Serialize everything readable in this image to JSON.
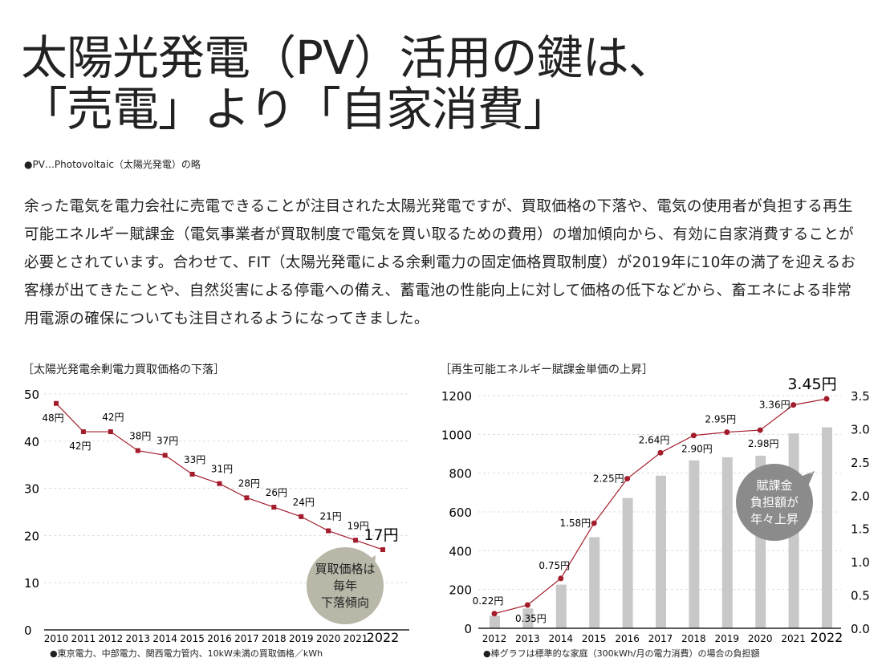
{
  "title_line1": "太陽光発電（PV）活用の鍵は、",
  "title_line2": "「売電」より「自家消費」",
  "note": "●PV…Photovoltaic（太陽光発電）の略",
  "body": "余った電気を電力会社に売電できることが注目された太陽光発電ですが、買取価格の下落や、電気の使用者が負担する再生可能エネルギー賦課金（電気事業者が買取制度で電気を買い取るための費用）の増加傾向から、有効に自家消費することが必要とされています。合わせて、FIT（太陽光発電による余剰電力の固定価格買取制度）が2019年に10年の満了を迎えるお客様が出てきたことや、自然災害による停電への備え、蓄電池の性能向上に対して価格の低下などから、畜エネによる非常用電源の確保についても注目されるようになってきました。",
  "chart_data": [
    {
      "type": "line",
      "title": "［太陽光発電余剰電力買取価格の下落］",
      "x": [
        "2010",
        "2011",
        "2012",
        "2013",
        "2014",
        "2015",
        "2016",
        "2017",
        "2018",
        "2019",
        "2020",
        "2021",
        "2022"
      ],
      "values": [
        48,
        42,
        42,
        38,
        37,
        33,
        31,
        28,
        26,
        24,
        21,
        19,
        17
      ],
      "labels": [
        "48円",
        "42円",
        "42円",
        "38円",
        "37円",
        "33円",
        "31円",
        "28円",
        "26円",
        "24円",
        "21円",
        "19円",
        "17円"
      ],
      "label_pos": [
        "below",
        "below",
        "above",
        "above",
        "above",
        "above",
        "above",
        "above",
        "above",
        "above",
        "above",
        "above",
        "big"
      ],
      "ylim": [
        0,
        50
      ],
      "yticks": [
        "0",
        "10",
        "20",
        "30",
        "40",
        "50"
      ],
      "callout": "買取価格は 毎年 下落傾向",
      "footnote": "●東京電力、中部電力、関西電力管内、10kW未満の買取価格／kWh",
      "color": "#a31c2c",
      "bubble_color": "#b9b7a8"
    },
    {
      "type": "bar+line",
      "title": "［再生可能エネルギー賦課金単価の上昇］",
      "x": [
        "2012",
        "2013",
        "2014",
        "2015",
        "2016",
        "2017",
        "2018",
        "2019",
        "2020",
        "2021",
        "2022"
      ],
      "bar_values": [
        64,
        102,
        225,
        470,
        672,
        787,
        866,
        882,
        890,
        1005,
        1036
      ],
      "line_values": [
        0.22,
        0.35,
        0.75,
        1.58,
        2.25,
        2.64,
        2.9,
        2.95,
        2.98,
        3.36,
        3.45
      ],
      "labels": [
        "0.22円",
        "0.35円",
        "0.75円",
        "1.58円",
        "2.25円",
        "2.64円",
        "2.90円",
        "2.95円",
        "2.98円",
        "3.36円",
        "3.45円"
      ],
      "label_pos": [
        "above",
        "below",
        "above",
        "left",
        "left",
        "above",
        "below",
        "above",
        "below",
        "left",
        "big"
      ],
      "ylim_left": [
        0,
        1200
      ],
      "yticks_left": [
        "0",
        "200",
        "400",
        "600",
        "800",
        "1000",
        "1200"
      ],
      "ylim_right": [
        0,
        3.5
      ],
      "yticks_right": [
        "0.0",
        "0.5",
        "1.0",
        "1.5",
        "2.0",
        "2.5",
        "3.0",
        "3.5"
      ],
      "callout": "賦課金 負担額が 年々上昇",
      "footnote": "●棒グラフは標準的な家庭（300kWh/月の電力消費）の場合の負担額",
      "color": "#a31c2c",
      "bar_color": "#c8c8c8",
      "bubble_color": "#8b8b8b"
    }
  ]
}
